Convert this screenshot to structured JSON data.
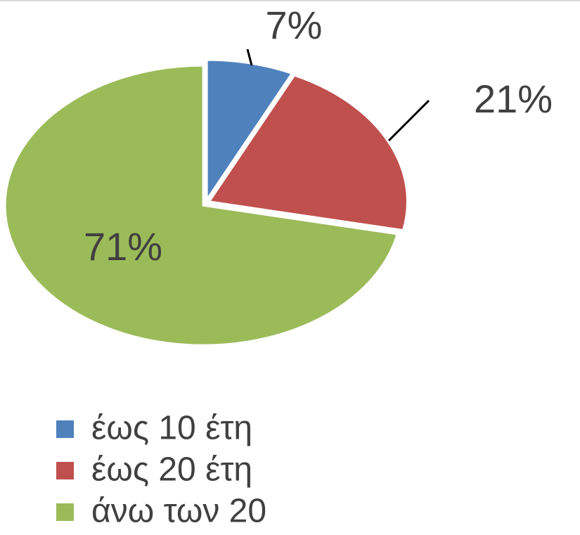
{
  "chart_data": {
    "type": "pie",
    "categories": [
      "έως 10 έτη",
      "έως 20 έτη",
      "άνω των 20"
    ],
    "values": [
      7,
      21,
      71
    ],
    "value_labels": [
      "7%",
      "21%",
      "71%"
    ],
    "colors": [
      "#4f81bd",
      "#c0504d",
      "#9bbb59"
    ],
    "legend": "bottom"
  }
}
